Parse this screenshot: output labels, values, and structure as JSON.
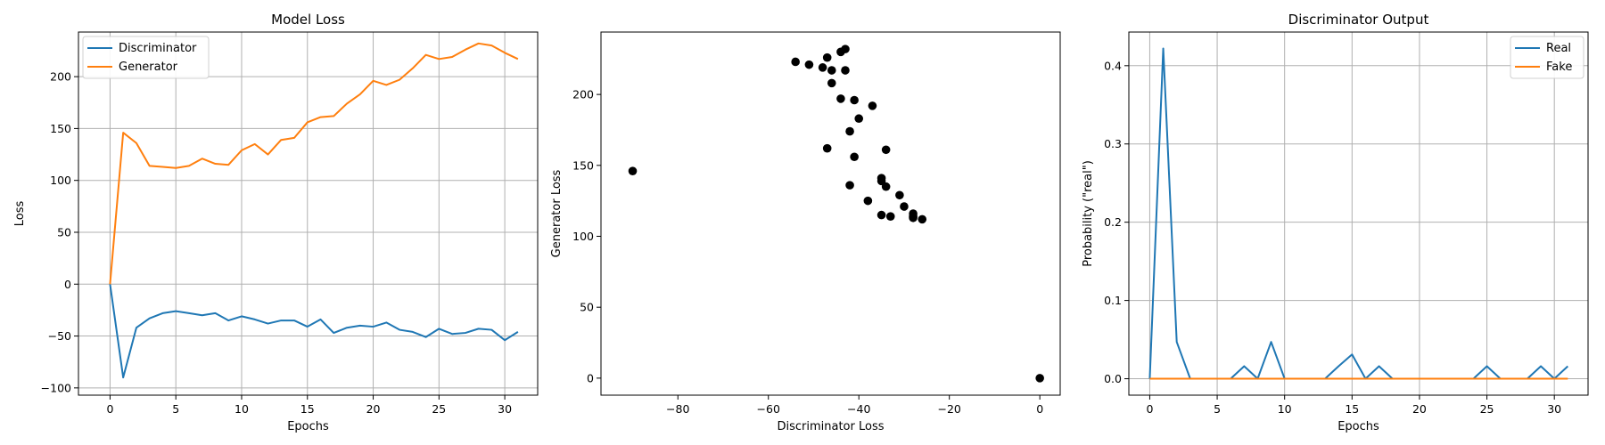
{
  "colors": {
    "series1": "#1f77b4",
    "series2": "#ff7f0e",
    "scatter": "#000000",
    "grid": "#b0b0b0"
  },
  "chart_data": [
    {
      "type": "line",
      "title": "Model Loss",
      "xlabel": "Epochs",
      "ylabel": "Loss",
      "xlim": [
        -2.4,
        32.5
      ],
      "ylim": [
        -107,
        243
      ],
      "xticks": [
        0,
        5,
        10,
        15,
        20,
        25,
        30
      ],
      "yticks": [
        -100,
        -50,
        0,
        50,
        100,
        150,
        200
      ],
      "grid": true,
      "legend": "upper-left",
      "x": [
        0,
        1,
        2,
        3,
        4,
        5,
        6,
        7,
        8,
        9,
        10,
        11,
        12,
        13,
        14,
        15,
        16,
        17,
        18,
        19,
        20,
        21,
        22,
        23,
        24,
        25,
        26,
        27,
        28,
        29,
        30,
        31
      ],
      "series": [
        {
          "name": "Discriminator",
          "values": [
            0,
            -90,
            -42,
            -33,
            -28,
            -26,
            -28,
            -30,
            -28,
            -35,
            -31,
            -34,
            -38,
            -35,
            -35,
            -41,
            -34,
            -47,
            -42,
            -40,
            -41,
            -37,
            -44,
            -46,
            -51,
            -43,
            -48,
            -47,
            -43,
            -44,
            -54,
            -46
          ]
        },
        {
          "name": "Generator",
          "values": [
            0,
            146,
            136,
            114,
            113,
            112,
            114,
            121,
            116,
            115,
            129,
            135,
            125,
            139,
            141,
            156,
            161,
            162,
            174,
            183,
            196,
            192,
            197,
            208,
            221,
            217,
            219,
            226,
            232,
            230,
            223,
            217
          ]
        }
      ]
    },
    {
      "type": "scatter",
      "title": "",
      "xlabel": "Discriminator Loss",
      "ylabel": "Generator Loss",
      "xlim": [
        -97,
        4.5
      ],
      "ylim": [
        -12,
        244
      ],
      "xticks": [
        -80,
        -60,
        -40,
        -20,
        0
      ],
      "yticks": [
        0,
        50,
        100,
        150,
        200
      ],
      "grid": false,
      "points": [
        [
          0,
          0
        ],
        [
          -90,
          146
        ],
        [
          -42,
          136
        ],
        [
          -33,
          114
        ],
        [
          -28,
          113
        ],
        [
          -26,
          112
        ],
        [
          -28,
          114
        ],
        [
          -30,
          121
        ],
        [
          -28,
          116
        ],
        [
          -35,
          115
        ],
        [
          -31,
          129
        ],
        [
          -34,
          135
        ],
        [
          -38,
          125
        ],
        [
          -35,
          139
        ],
        [
          -35,
          141
        ],
        [
          -41,
          156
        ],
        [
          -34,
          161
        ],
        [
          -47,
          162
        ],
        [
          -42,
          174
        ],
        [
          -40,
          183
        ],
        [
          -41,
          196
        ],
        [
          -37,
          192
        ],
        [
          -44,
          197
        ],
        [
          -46,
          208
        ],
        [
          -51,
          221
        ],
        [
          -43,
          217
        ],
        [
          -48,
          219
        ],
        [
          -47,
          226
        ],
        [
          -43,
          232
        ],
        [
          -44,
          230
        ],
        [
          -54,
          223
        ],
        [
          -46,
          217
        ]
      ]
    },
    {
      "type": "line",
      "title": "Discriminator Output",
      "xlabel": "Epochs",
      "ylabel": "Probability (\"real\")",
      "xlim": [
        -1.55,
        32.5
      ],
      "ylim": [
        -0.021,
        0.443
      ],
      "xticks": [
        0,
        5,
        10,
        15,
        20,
        25,
        30
      ],
      "yticks": [
        0.0,
        0.1,
        0.2,
        0.3,
        0.4
      ],
      "ytick_labels": [
        "0.0",
        "0.1",
        "0.2",
        "0.3",
        "0.4"
      ],
      "grid": true,
      "legend": "upper-right",
      "x": [
        0,
        1,
        2,
        3,
        4,
        5,
        6,
        7,
        8,
        9,
        10,
        11,
        12,
        13,
        14,
        15,
        16,
        17,
        18,
        19,
        20,
        21,
        22,
        23,
        24,
        25,
        26,
        27,
        28,
        29,
        30,
        31
      ],
      "series": [
        {
          "name": "Real",
          "values": [
            0,
            0.422,
            0.047,
            0,
            0,
            0,
            0,
            0.016,
            0,
            0.047,
            0,
            0,
            0,
            0,
            0.016,
            0.031,
            0,
            0.016,
            0,
            0,
            0,
            0,
            0,
            0,
            0,
            0.016,
            0,
            0,
            0,
            0.016,
            0,
            0.016
          ]
        },
        {
          "name": "Fake",
          "values": [
            0,
            0,
            0,
            0,
            0,
            0,
            0,
            0,
            0,
            0,
            0,
            0,
            0,
            0,
            0,
            0,
            0,
            0,
            0,
            0,
            0,
            0,
            0,
            0,
            0,
            0,
            0,
            0,
            0,
            0,
            0,
            0
          ]
        }
      ]
    }
  ]
}
